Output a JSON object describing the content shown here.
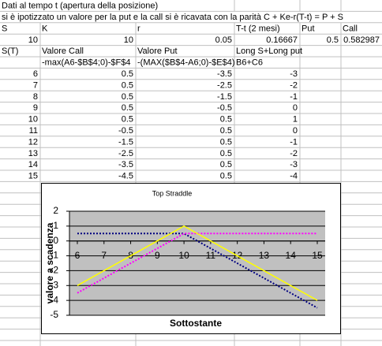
{
  "sheet": {
    "title": "Dati al tempo t (apertura della posizione)",
    "note": "si è ipotizzato un valore per la put e la call si è ricavata con la parità C + Ke-r(T-t) = P + S",
    "params": {
      "headers": [
        "S",
        "K",
        "r",
        "T-t (2 mesi)",
        "Put",
        "Call"
      ],
      "values": [
        10,
        10,
        0.05,
        0.16667,
        0.5,
        0.582987
      ]
    },
    "table": {
      "headers": [
        "S(T)",
        "Valore Call",
        "Valore Put",
        "Long S+Long put"
      ],
      "formulas": [
        "-max(A6-$B$4;0)-$F$4",
        "-(MAX($B$4-A6;0)-$E$4)",
        "B6+C6"
      ],
      "rows": [
        [
          6,
          0.5,
          -3.5,
          -3
        ],
        [
          7,
          0.5,
          -2.5,
          -2
        ],
        [
          8,
          0.5,
          -1.5,
          -1
        ],
        [
          9,
          0.5,
          -0.5,
          0
        ],
        [
          10,
          0.5,
          0.5,
          1
        ],
        [
          11,
          -0.5,
          0.5,
          0
        ],
        [
          12,
          -1.5,
          0.5,
          -1
        ],
        [
          13,
          -2.5,
          0.5,
          -2
        ],
        [
          14,
          -3.5,
          0.5,
          -3
        ],
        [
          15,
          -4.5,
          0.5,
          -4
        ]
      ]
    }
  },
  "chart_data": {
    "type": "line",
    "title": "Top Straddle",
    "xlabel": "Sottostante",
    "ylabel": "valore a scadenza",
    "categories": [
      6,
      7,
      8,
      9,
      10,
      11,
      12,
      13,
      14,
      15
    ],
    "series": [
      {
        "color": "#000080",
        "line_style": "dotted",
        "values": [
          0.5,
          0.5,
          0.5,
          0.5,
          0.5,
          -0.5,
          -1.5,
          -2.5,
          -3.5,
          -4.5
        ]
      },
      {
        "color": "#ff00ff",
        "line_style": "dotted",
        "values": [
          -3.5,
          -2.5,
          -1.5,
          -0.5,
          0.5,
          0.5,
          0.5,
          0.5,
          0.5,
          0.5
        ]
      },
      {
        "color": "#ffff00",
        "line_style": "solid",
        "values": [
          -3,
          -2,
          -1,
          0,
          1,
          0,
          -1,
          -2,
          -3,
          -4
        ]
      }
    ],
    "ylim": [
      -5,
      2
    ],
    "yticks": [
      -5,
      -4,
      -3,
      -2,
      -1,
      0,
      1,
      2
    ],
    "grid": true
  }
}
